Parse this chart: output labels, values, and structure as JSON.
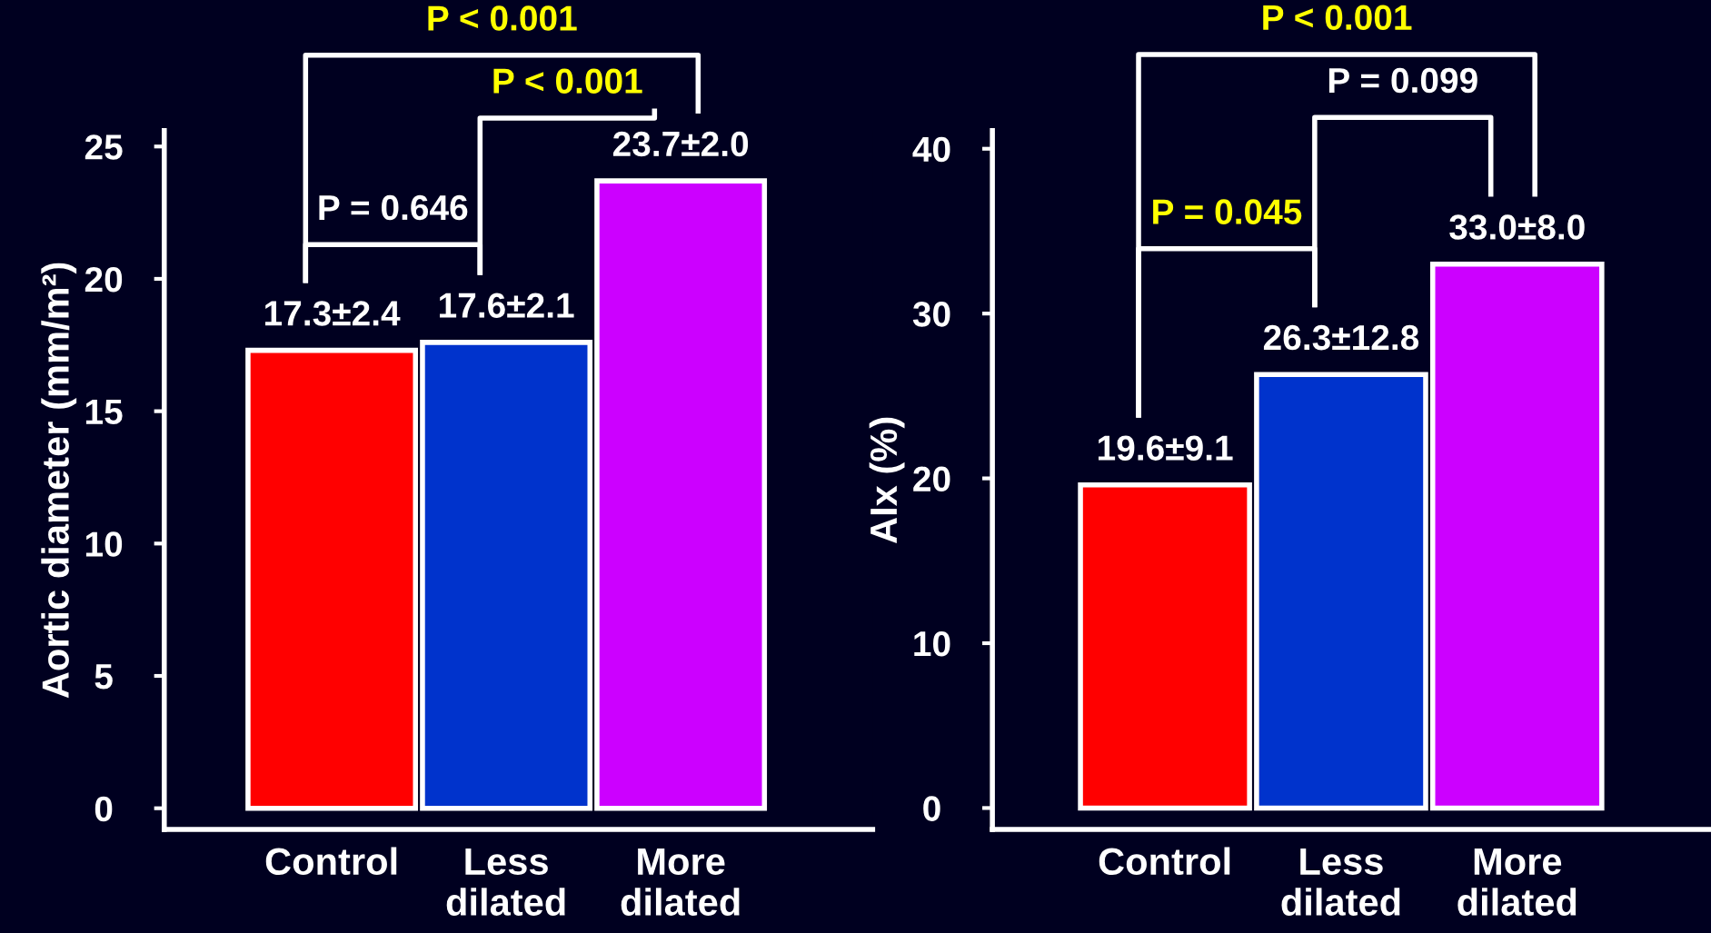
{
  "chart_data": [
    {
      "type": "bar",
      "ylabel": "Aortic diameter (mm/m²)",
      "categories": [
        "Control",
        "Less\ndilated",
        "More\ndilated"
      ],
      "values": [
        17.3,
        17.6,
        23.7
      ],
      "colors": [
        "#ff0000",
        "#0033cc",
        "#cc00ff"
      ],
      "value_labels": [
        "17.3±2.4",
        "17.6±2.1",
        "23.7±2.0"
      ],
      "ylim": [
        -0.8,
        25.6
      ],
      "yticks": [
        0,
        5,
        10,
        15,
        20,
        25
      ],
      "grid": false,
      "annotations": [
        "P = 0.646",
        "P < 0.001",
        "P < 0.001"
      ]
    },
    {
      "type": "bar",
      "ylabel": "AIx (%)",
      "categories": [
        "Control",
        "Less\ndilated",
        "More\ndilated"
      ],
      "values": [
        19.6,
        26.3,
        33.0
      ],
      "colors": [
        "#ff0000",
        "#0033cc",
        "#cc00ff"
      ],
      "value_labels": [
        "19.6±9.1",
        "26.3±12.8",
        "33.0±8.0"
      ],
      "ylim": [
        -1.3,
        41.1
      ],
      "yticks": [
        0,
        10,
        20,
        30,
        40
      ],
      "grid": false,
      "annotations": [
        "P = 0.045",
        "P = 0.099",
        "P < 0.001"
      ]
    }
  ]
}
